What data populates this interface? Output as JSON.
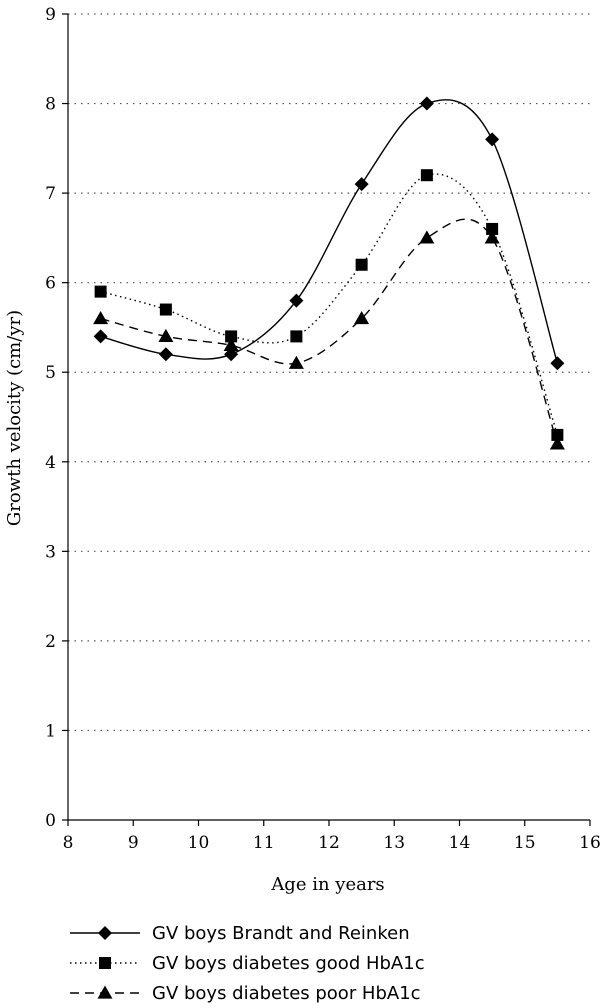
{
  "chart_data": {
    "type": "line",
    "title": "",
    "xlabel": "Age in years",
    "ylabel": "Growth velocity (cm/yr)",
    "xlim": [
      8,
      16
    ],
    "ylim": [
      0,
      9
    ],
    "xticks": [
      "8",
      "9",
      "10",
      "11",
      "12",
      "13",
      "14",
      "15",
      "16"
    ],
    "yticks": [
      "0",
      "1",
      "2",
      "3",
      "4",
      "5",
      "6",
      "7",
      "8",
      "9"
    ],
    "grid": "horizontal-dotted",
    "legend_position": "bottom",
    "x": [
      8.5,
      9.5,
      10.5,
      11.5,
      12.5,
      13.5,
      14.5,
      15.5
    ],
    "series": [
      {
        "name": "GV boys Brandt and Reinken",
        "values": [
          5.4,
          5.2,
          5.2,
          5.8,
          7.1,
          8.0,
          7.6,
          5.1
        ],
        "line_style": "solid",
        "marker": "diamond"
      },
      {
        "name": "GV boys diabetes good HbA1c",
        "values": [
          5.9,
          5.7,
          5.4,
          5.4,
          6.2,
          7.2,
          6.6,
          4.3
        ],
        "line_style": "dotted",
        "marker": "square"
      },
      {
        "name": "GV boys diabetes poor HbA1c",
        "values": [
          5.6,
          5.4,
          5.3,
          5.1,
          5.6,
          6.5,
          6.5,
          4.2
        ],
        "line_style": "dashed",
        "marker": "triangle"
      }
    ],
    "colors": {
      "line": "#000000",
      "grid": "#555555"
    }
  }
}
